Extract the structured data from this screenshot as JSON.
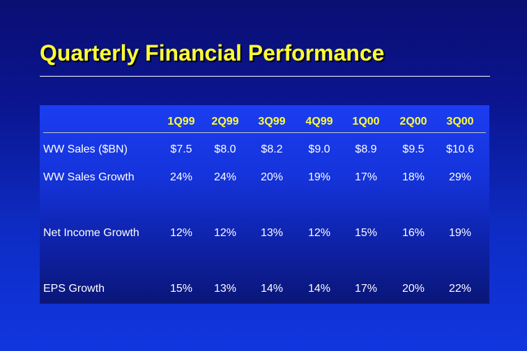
{
  "slide": {
    "title": "Quarterly Financial Performance"
  },
  "table": {
    "columns": [
      "1Q99",
      "2Q99",
      "3Q99",
      "4Q99",
      "1Q00",
      "2Q00",
      "3Q00"
    ],
    "rows": [
      {
        "label": "WW Sales ($BN)",
        "values": [
          "$7.5",
          "$8.0",
          "$8.2",
          "$9.0",
          "$8.9",
          "$9.5",
          "$10.6"
        ]
      },
      {
        "label": "WW Sales Growth",
        "values": [
          "24%",
          "24%",
          "20%",
          "19%",
          "17%",
          "18%",
          "29%"
        ]
      },
      {
        "label": "Net Income Growth",
        "values": [
          "12%",
          "12%",
          "13%",
          "12%",
          "15%",
          "16%",
          "19%"
        ]
      },
      {
        "label": "EPS Growth",
        "values": [
          "15%",
          "13%",
          "14%",
          "14%",
          "17%",
          "20%",
          "22%"
        ]
      }
    ]
  },
  "colors": {
    "title": "#ffff33",
    "column_headers": "#ffff33",
    "text": "#ffffff"
  }
}
